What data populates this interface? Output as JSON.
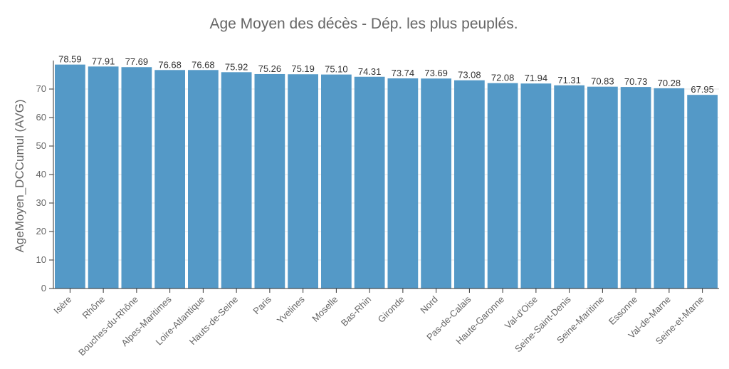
{
  "chart_data": {
    "type": "bar",
    "title": "Age Moyen des décès - Dép. les plus peuplés.",
    "xlabel": "",
    "ylabel": "AgeMoyen_DCCumul (AVG)",
    "ylim": [
      0,
      80
    ],
    "yticks": [
      0,
      10,
      20,
      30,
      40,
      50,
      60,
      70
    ],
    "grid": true,
    "color": "#5499c7",
    "categories": [
      "Isère",
      "Rhône",
      "Bouches-du-Rhône",
      "Alpes-Maritimes",
      "Loire-Atlantique",
      "Hauts-de-Seine",
      "Paris",
      "Yvelines",
      "Moselle",
      "Bas-Rhin",
      "Gironde",
      "Nord",
      "Pas-de-Calais",
      "Haute-Garonne",
      "Val-d'Oise",
      "Seine-Saint-Denis",
      "Seine-Maritime",
      "Essonne",
      "Val-de-Marne",
      "Seine-et-Marne"
    ],
    "values": [
      78.59,
      77.91,
      77.69,
      76.68,
      76.68,
      75.92,
      75.26,
      75.19,
      75.1,
      74.31,
      73.74,
      73.69,
      73.08,
      72.08,
      71.94,
      71.31,
      70.83,
      70.73,
      70.28,
      67.95
    ],
    "value_labels": [
      "78.59",
      "77.91",
      "77.69",
      "76.68",
      "76.68",
      "75.92",
      "75.26",
      "75.19",
      "75.10",
      "74.31",
      "73.74",
      "73.69",
      "73.08",
      "72.08",
      "71.94",
      "71.31",
      "70.83",
      "70.73",
      "70.28",
      "67.95"
    ]
  }
}
